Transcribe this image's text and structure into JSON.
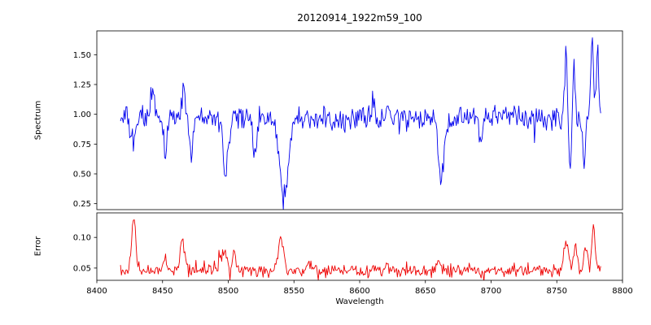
{
  "figure": {
    "background": "#ffffff"
  },
  "chart_data": [
    {
      "type": "line",
      "title": "20120914_1922m59_100",
      "ylabel": "Spectrum",
      "xlabel": "",
      "xlim": [
        8400,
        8800
      ],
      "ylim": [
        0.2,
        1.7
      ],
      "xticks": [
        8400,
        8450,
        8500,
        8550,
        8600,
        8650,
        8700,
        8750,
        8800
      ],
      "yticks": [
        0.25,
        0.5,
        0.75,
        1.0,
        1.25,
        1.5
      ],
      "show_xticklabels": false,
      "grid": false,
      "legend": null,
      "line_color": "#0000ee",
      "x_data_range": [
        8418,
        8784
      ],
      "baseline": 0.97,
      "noise_amplitude": 0.12,
      "features": {
        "absorption_lines": [
          {
            "x": 8427,
            "depth": 0.2,
            "width": 1.8
          },
          {
            "x": 8452,
            "depth": 0.28,
            "width": 1.2
          },
          {
            "x": 8472,
            "depth": 0.33,
            "width": 1.4
          },
          {
            "x": 8498,
            "depth": 0.42,
            "width": 2.2
          },
          {
            "x": 8520,
            "depth": 0.28,
            "width": 1.4
          },
          {
            "x": 8542,
            "depth": 0.7,
            "width": 3.0
          },
          {
            "x": 8662,
            "depth": 0.5,
            "width": 2.2
          },
          {
            "x": 8692,
            "depth": 0.24,
            "width": 1.2
          },
          {
            "x": 8760,
            "depth": 0.4,
            "width": 1.0
          },
          {
            "x": 8771,
            "depth": 0.38,
            "width": 1.0
          }
        ],
        "emission_spikes": [
          {
            "x": 8443,
            "amp": 0.28,
            "width": 1.0
          },
          {
            "x": 8466,
            "amp": 0.33,
            "width": 1.0
          },
          {
            "x": 8757,
            "amp": 0.55,
            "width": 1.0
          },
          {
            "x": 8763,
            "amp": 0.42,
            "width": 0.9
          },
          {
            "x": 8777,
            "amp": 0.65,
            "width": 1.0
          },
          {
            "x": 8781,
            "amp": 0.58,
            "width": 0.9
          }
        ]
      }
    },
    {
      "type": "line",
      "title": "",
      "ylabel": "Error",
      "xlabel": "Wavelength",
      "xlim": [
        8400,
        8800
      ],
      "ylim": [
        0.03,
        0.14
      ],
      "xticks": [
        8400,
        8450,
        8500,
        8550,
        8600,
        8650,
        8700,
        8750,
        8800
      ],
      "yticks": [
        0.05,
        0.1
      ],
      "show_xticklabels": true,
      "grid": false,
      "legend": null,
      "line_color": "#ee0000",
      "x_data_range": [
        8418,
        8784
      ],
      "baseline": 0.045,
      "noise_amplitude": 0.012,
      "features": {
        "absorption_lines": [],
        "emission_spikes": [
          {
            "x": 8428,
            "amp": 0.088,
            "width": 1.5
          },
          {
            "x": 8452,
            "amp": 0.022,
            "width": 1.5
          },
          {
            "x": 8465,
            "amp": 0.052,
            "width": 1.8
          },
          {
            "x": 8497,
            "amp": 0.032,
            "width": 2.5
          },
          {
            "x": 8505,
            "amp": 0.028,
            "width": 1.5
          },
          {
            "x": 8540,
            "amp": 0.055,
            "width": 2.0
          },
          {
            "x": 8562,
            "amp": 0.012,
            "width": 2.0
          },
          {
            "x": 8620,
            "amp": 0.008,
            "width": 2.0
          },
          {
            "x": 8660,
            "amp": 0.014,
            "width": 2.5
          },
          {
            "x": 8685,
            "amp": 0.01,
            "width": 2.0
          },
          {
            "x": 8757,
            "amp": 0.048,
            "width": 1.8
          },
          {
            "x": 8764,
            "amp": 0.042,
            "width": 1.5
          },
          {
            "x": 8772,
            "amp": 0.038,
            "width": 1.5
          },
          {
            "x": 8778,
            "amp": 0.072,
            "width": 1.2
          }
        ]
      }
    }
  ]
}
